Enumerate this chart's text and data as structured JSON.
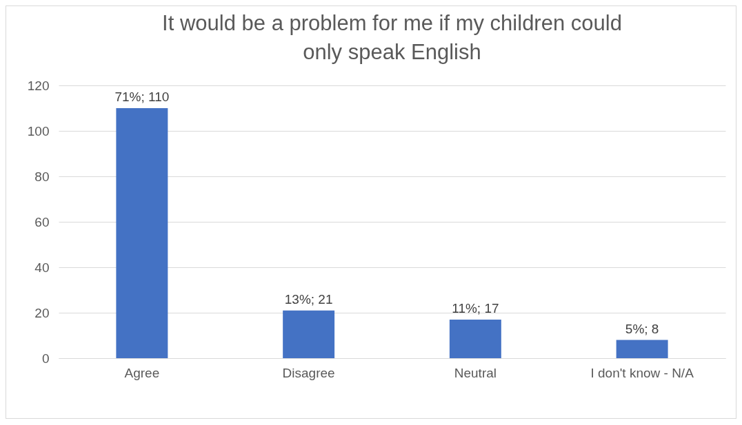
{
  "chart_data": {
    "type": "bar",
    "title": "It would be a problem for me if my children could only speak English",
    "categories": [
      "Agree",
      "Disagree",
      "Neutral",
      "I don't know - N/A"
    ],
    "values": [
      110,
      21,
      17,
      8
    ],
    "value_labels": [
      "71%; 110",
      "13%; 21",
      "11%; 17",
      "5%; 8"
    ],
    "color": "#4472c4",
    "ylim": [
      0,
      120
    ],
    "yticks": [
      0,
      20,
      40,
      60,
      80,
      100,
      120
    ],
    "grid": "y"
  }
}
